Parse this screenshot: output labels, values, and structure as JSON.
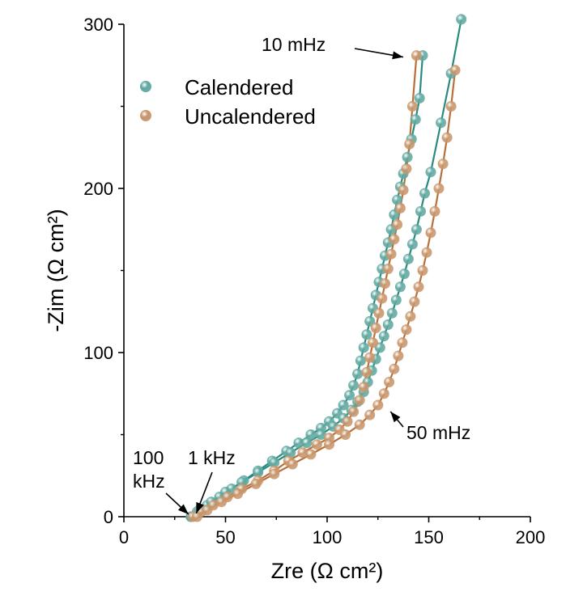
{
  "chart_data": {
    "type": "scatter",
    "title": "",
    "xlabel": "Zre (Ω cm²)",
    "ylabel": "-Zim (Ω cm²)",
    "xlim": [
      0,
      200
    ],
    "ylim": [
      0,
      300
    ],
    "xticks": [
      0,
      50,
      100,
      150,
      200
    ],
    "yticks": [
      0,
      100,
      200,
      300
    ],
    "xticks_labels": [
      "0",
      "50",
      "100",
      "150",
      "200"
    ],
    "yticks_labels": [
      "0",
      "100",
      "200",
      "300"
    ],
    "grid": false,
    "legend_position": "top-left",
    "series": [
      {
        "name": "Calendered",
        "color": "#5fa8a0",
        "fit_color": "#2a8a80",
        "branches": [
          {
            "x": [
              33,
              36,
              41,
              47,
              53,
              59,
              66,
              73,
              80,
              86,
              92,
              97,
              101,
              105,
              108,
              111,
              113,
              115,
              116.5,
              118,
              119.5,
              121,
              122.5,
              124,
              125.5,
              127,
              128.5,
              130,
              131.5,
              133,
              134.5,
              136,
              137.5,
              139.5,
              141.5,
              143.5,
              145.5,
              147
            ],
            "y": [
              0,
              3,
              7,
              12,
              17,
              22,
              28,
              34,
              40,
              45,
              50,
              54,
              58,
              63,
              68,
              74,
              80,
              87,
              95,
              103,
              111,
              119,
              127,
              135,
              143,
              151,
              159,
              167,
              175,
              184,
              193,
              201,
              209,
              219,
              230,
              242,
              255,
              281
            ]
          },
          {
            "x": [
              33,
              37,
              43,
              50,
              58,
              66,
              74,
              82,
              90,
              97,
              103,
              108,
              112,
              115,
              118,
              120,
              122,
              124,
              126,
              128,
              130,
              132,
              134,
              136,
              138,
              140,
              142,
              144,
              146,
              148,
              151,
              156,
              161,
              166
            ],
            "y": [
              0,
              4,
              9,
              15,
              21,
              27,
              33,
              39,
              45,
              50,
              55,
              60,
              65,
              70,
              76,
              82,
              89,
              96,
              103,
              110,
              117,
              124,
              132,
              140,
              148,
              157,
              166,
              175,
              186,
              197,
              210,
              240,
              270,
              303
            ]
          }
        ]
      },
      {
        "name": "Uncalendered",
        "color": "#c8956a",
        "fit_color": "#b8703a",
        "branches": [
          {
            "x": [
              34,
              38,
              44,
              51,
              58,
              66,
              74,
              81,
              88,
              95,
              101,
              106,
              110,
              113,
              116,
              118,
              119.5,
              121,
              122.5,
              124,
              125.5,
              127,
              128.5,
              130,
              131.5,
              133,
              134.5,
              136,
              137.5,
              139,
              140.5,
              142,
              144
            ],
            "y": [
              0,
              3,
              7,
              12,
              17,
              22,
              28,
              34,
              39,
              44,
              48,
              53,
              58,
              64,
              71,
              79,
              88,
              97,
              106,
              115,
              124,
              133,
              142,
              151,
              160,
              169,
              178,
              188,
              199,
              212,
              227,
              250,
              281
            ]
          },
          {
            "x": [
              36,
              41,
              48,
              56,
              65,
              74,
              83,
              92,
              101,
              109,
              116,
              121,
              125,
              128,
              130.5,
              133,
              135,
              137,
              139,
              141,
              143,
              145,
              147,
              149,
              151,
              153,
              155,
              157,
              159,
              161,
              163
            ],
            "y": [
              0,
              4,
              9,
              14,
              20,
              26,
              32,
              38,
              44,
              50,
              56,
              62,
              68,
              75,
              82,
              90,
              98,
              106,
              114,
              122,
              131,
              140,
              150,
              161,
              173,
              186,
              200,
              215,
              231,
              250,
              272
            ]
          }
        ]
      }
    ],
    "annotations": [
      {
        "text": "10 mHz",
        "target_x": 141,
        "target_y": 281
      },
      {
        "text": "50 mHz",
        "target_x": 128,
        "target_y": 66
      },
      {
        "text": "100",
        "target_x": 33,
        "target_y": 0
      },
      {
        "text": "kHz",
        "target_x": 33,
        "target_y": 0
      },
      {
        "text": "1 kHz",
        "target_x": 38,
        "target_y": 6
      }
    ]
  }
}
